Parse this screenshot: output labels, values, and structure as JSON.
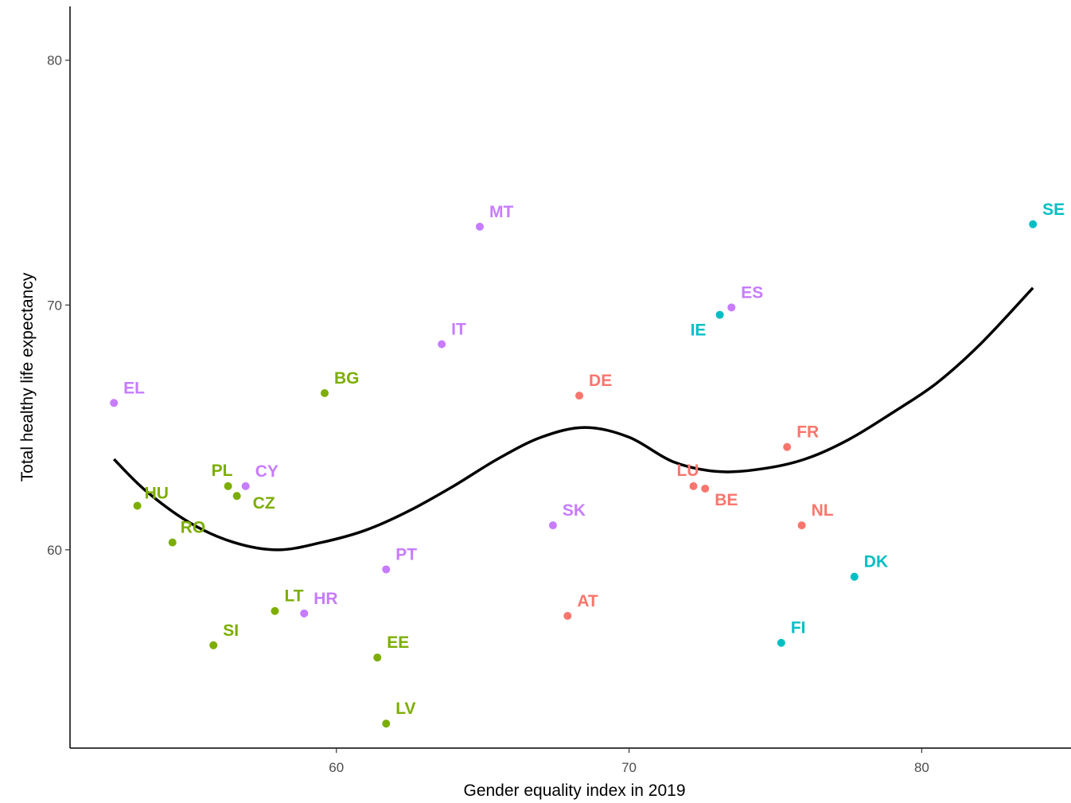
{
  "chart_data": {
    "type": "scatter",
    "title": "",
    "xlabel": "Gender equality index in 2019",
    "ylabel": "Total healthy life expectancy",
    "xlim": [
      50.9,
      85.1
    ],
    "ylim": [
      51.9,
      82.2
    ],
    "xticks": [
      60,
      70,
      80
    ],
    "yticks": [
      60,
      70,
      80
    ],
    "grid": false,
    "legend": "none",
    "colors": {
      "red": "#F8766D",
      "green": "#7CAE00",
      "cyan": "#00BFC4",
      "purple": "#C77CFF"
    },
    "points": [
      {
        "label": "SE",
        "x": 83.8,
        "y": 73.3,
        "color": "cyan"
      },
      {
        "label": "DK",
        "x": 77.7,
        "y": 58.9,
        "color": "cyan"
      },
      {
        "label": "FI",
        "x": 75.2,
        "y": 56.2,
        "color": "cyan"
      },
      {
        "label": "IE",
        "x": 73.1,
        "y": 69.6,
        "color": "cyan"
      },
      {
        "label": "MT",
        "x": 64.9,
        "y": 73.2,
        "color": "purple"
      },
      {
        "label": "ES",
        "x": 73.5,
        "y": 69.9,
        "color": "purple"
      },
      {
        "label": "IT",
        "x": 63.6,
        "y": 68.4,
        "color": "purple"
      },
      {
        "label": "EL",
        "x": 52.4,
        "y": 66.0,
        "color": "purple"
      },
      {
        "label": "CY",
        "x": 56.9,
        "y": 62.6,
        "color": "purple"
      },
      {
        "label": "SK",
        "x": 67.4,
        "y": 61.0,
        "color": "purple"
      },
      {
        "label": "PT",
        "x": 61.7,
        "y": 59.2,
        "color": "purple"
      },
      {
        "label": "HR",
        "x": 58.9,
        "y": 57.4,
        "color": "purple"
      },
      {
        "label": "DE",
        "x": 68.3,
        "y": 66.3,
        "color": "red"
      },
      {
        "label": "FR",
        "x": 75.4,
        "y": 64.2,
        "color": "red"
      },
      {
        "label": "LU",
        "x": 72.2,
        "y": 62.6,
        "color": "red"
      },
      {
        "label": "BE",
        "x": 72.6,
        "y": 62.5,
        "color": "red"
      },
      {
        "label": "NL",
        "x": 75.9,
        "y": 61.0,
        "color": "red"
      },
      {
        "label": "AT",
        "x": 67.9,
        "y": 57.3,
        "color": "red"
      },
      {
        "label": "BG",
        "x": 59.6,
        "y": 66.4,
        "color": "green"
      },
      {
        "label": "HU",
        "x": 53.2,
        "y": 61.8,
        "color": "green"
      },
      {
        "label": "PL",
        "x": 56.3,
        "y": 62.6,
        "color": "green"
      },
      {
        "label": "CZ",
        "x": 56.6,
        "y": 62.2,
        "color": "green"
      },
      {
        "label": "RO",
        "x": 54.4,
        "y": 60.3,
        "color": "green"
      },
      {
        "label": "LT",
        "x": 57.9,
        "y": 57.5,
        "color": "green"
      },
      {
        "label": "SI",
        "x": 55.8,
        "y": 56.1,
        "color": "green"
      },
      {
        "label": "EE",
        "x": 61.4,
        "y": 55.6,
        "color": "green"
      },
      {
        "label": "LV",
        "x": 61.7,
        "y": 52.9,
        "color": "green"
      }
    ],
    "smooth_curve": {
      "color": "#000000",
      "x": [
        52.4,
        53.5,
        55.0,
        56.5,
        58.0,
        59.5,
        61.0,
        62.5,
        64.0,
        65.5,
        67.0,
        68.5,
        70.0,
        71.5,
        73.0,
        74.5,
        76.0,
        77.5,
        79.0,
        80.5,
        82.0,
        83.8
      ],
      "y": [
        63.7,
        62.4,
        61.1,
        60.3,
        60.0,
        60.3,
        60.8,
        61.6,
        62.6,
        63.7,
        64.6,
        65.0,
        64.6,
        63.6,
        63.2,
        63.3,
        63.7,
        64.5,
        65.6,
        66.8,
        68.4,
        70.7
      ]
    }
  }
}
